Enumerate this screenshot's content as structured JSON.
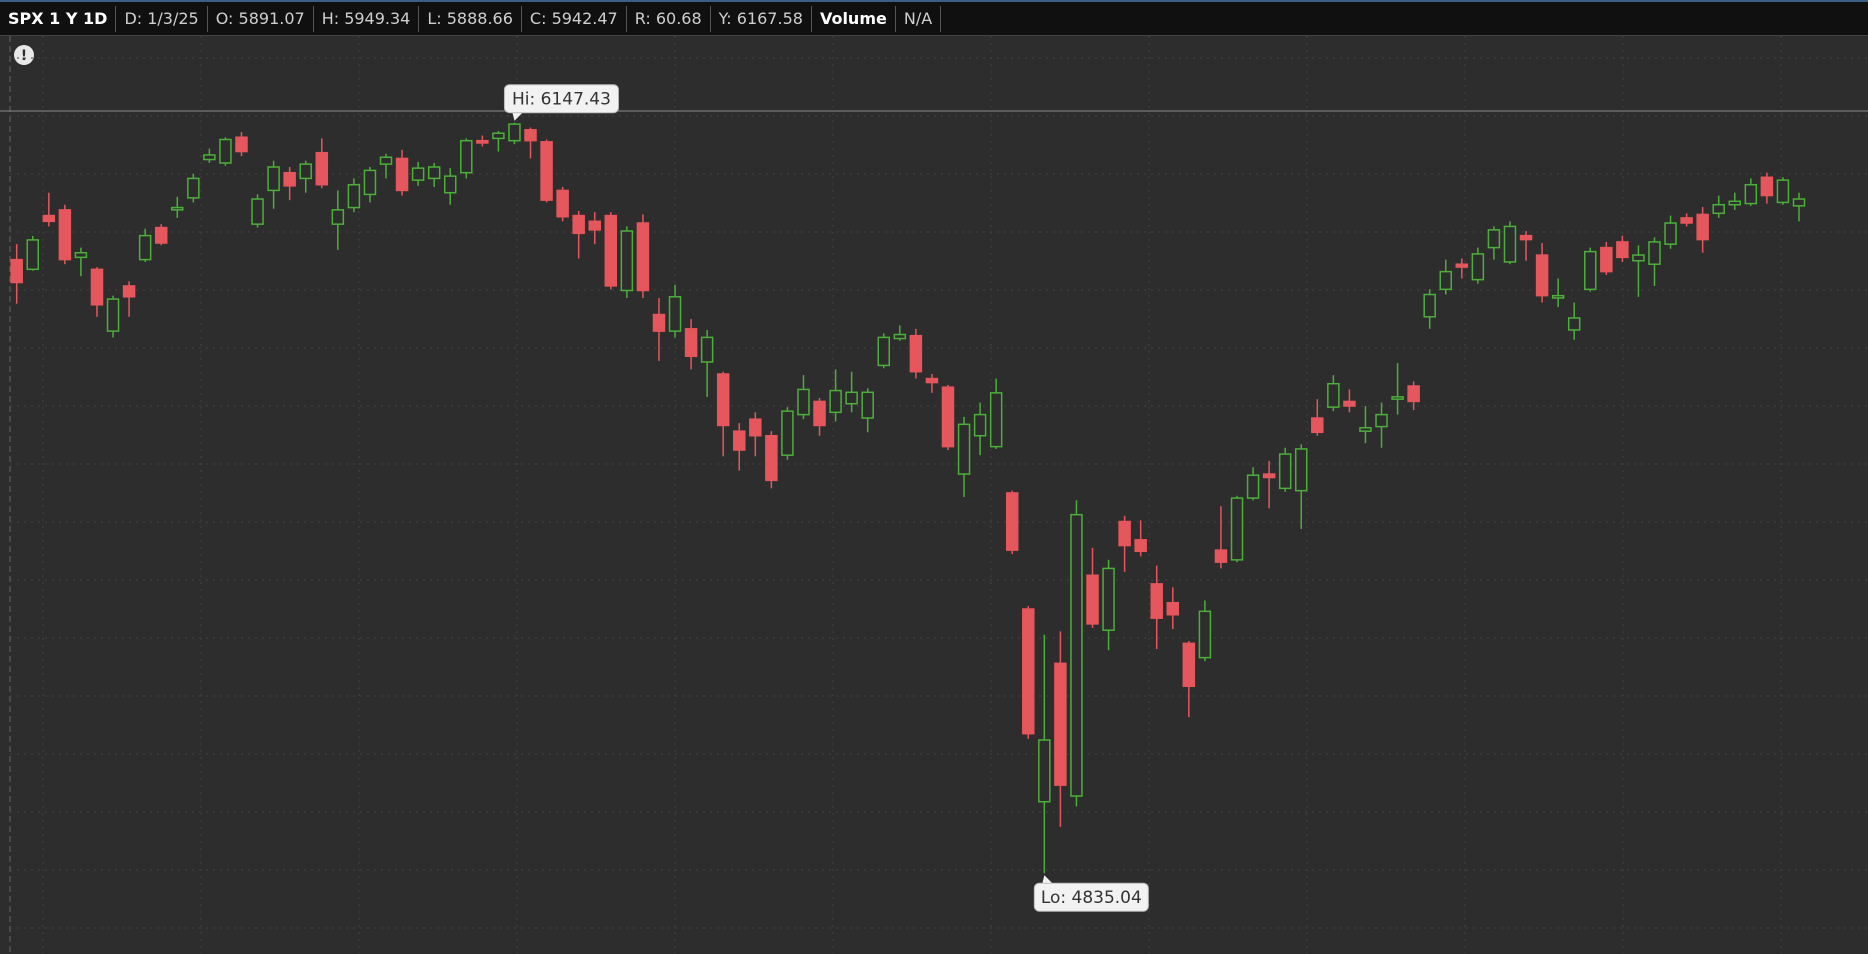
{
  "header": {
    "symbol": "SPX 1 Y 1D",
    "fields": [
      "D: 1/3/25",
      "O: 5891.07",
      "H: 5949.34",
      "L: 5888.66",
      "C: 5942.47",
      "R: 60.68",
      "Y: 6167.58"
    ],
    "volume": "Volume",
    "volume_value": "N/A"
  },
  "chart_data": {
    "type": "candlestick",
    "up_color": "#4caf3a",
    "down_color": "#e5575c",
    "high_callout": "Hi: 6147.43",
    "low_callout": "Lo: 4835.04",
    "open": [
      5908,
      5891.07,
      5985,
      5995,
      5912,
      5891,
      5783,
      5862,
      5908,
      5964,
      5995,
      6016,
      6083,
      6077,
      6122,
      5970,
      6029,
      6060,
      6050,
      6095,
      5970,
      5999,
      6022,
      6075,
      6085,
      6047,
      6050,
      6025,
      6060,
      6116,
      6120,
      6116,
      6135,
      6114,
      6029,
      5985,
      5975,
      5985,
      5854,
      5972,
      5812,
      5783,
      5787,
      5729,
      5708,
      5608,
      5629,
      5600,
      5566,
      5637,
      5660,
      5641,
      5656,
      5631,
      5723,
      5770,
      5775,
      5700,
      5685,
      5533,
      5600,
      5581,
      5500,
      5297,
      4960,
      5202,
      4970,
      5356,
      5260,
      5450,
      5418,
      5341,
      5308,
      5237,
      5212,
      5400,
      5383,
      5491,
      5533,
      5508,
      5504,
      5631,
      5650,
      5660,
      5608,
      5616,
      5664,
      5687,
      5808,
      5856,
      5900,
      5873,
      5929,
      5904,
      5950,
      5916,
      5841,
      5785,
      5856,
      5929,
      5939,
      5906,
      5900,
      5935,
      5981,
      5987,
      5989,
      6004,
      6006,
      6052,
      6008,
      6002
    ],
    "high": [
      5935,
      5949.34,
      6025,
      6004,
      5929,
      5895,
      5845,
      5870,
      5962,
      5970,
      6018,
      6058,
      6102,
      6122,
      6131,
      6022,
      6081,
      6070,
      6081,
      6120,
      6029,
      6050,
      6070,
      6093,
      6100,
      6079,
      6077,
      6068,
      6120,
      6125,
      6133,
      6147.43,
      6139,
      6118,
      6035,
      5993,
      5991,
      5991,
      5966,
      5987,
      5841,
      5864,
      5804,
      5785,
      5712,
      5622,
      5641,
      5608,
      5650,
      5706,
      5666,
      5716,
      5712,
      5683,
      5779,
      5793,
      5787,
      5708,
      5689,
      5633,
      5658,
      5700,
      5504,
      5302,
      5252,
      5258,
      5487,
      5404,
      5383,
      5460,
      5452,
      5373,
      5335,
      5241,
      5312,
      5477,
      5495,
      5545,
      5556,
      5579,
      5585,
      5664,
      5706,
      5681,
      5652,
      5658,
      5727,
      5695,
      5856,
      5908,
      5910,
      5929,
      5966,
      5975,
      5958,
      5937,
      5875,
      5833,
      5929,
      5939,
      5950,
      5933,
      5947,
      5985,
      5989,
      6000,
      6020,
      6025,
      6050,
      6060,
      6052,
      6025
    ],
    "low": [
      5831,
      5888.66,
      5966,
      5900,
      5879,
      5808,
      5772,
      5808,
      5904,
      5933,
      5981,
      6008,
      6077,
      6072,
      6089,
      5964,
      5997,
      6012,
      6025,
      6033,
      5925,
      5991,
      6008,
      6050,
      6020,
      6037,
      6035,
      6004,
      6050,
      6106,
      6097,
      6110,
      6085,
      6008,
      5975,
      5910,
      5935,
      5856,
      5841,
      5841,
      5731,
      5772,
      5716,
      5668,
      5564,
      5539,
      5564,
      5508,
      5558,
      5629,
      5600,
      5625,
      5641,
      5606,
      5718,
      5766,
      5700,
      5675,
      5575,
      5493,
      5566,
      5577,
      5393,
      5070,
      4835.04,
      4916,
      4952,
      5264,
      5225,
      5362,
      5389,
      5227,
      5262,
      5108,
      5206,
      5368,
      5379,
      5487,
      5473,
      5502,
      5437,
      5600,
      5643,
      5641,
      5587,
      5579,
      5637,
      5645,
      5787,
      5847,
      5875,
      5866,
      5908,
      5900,
      5906,
      5833,
      5825,
      5768,
      5852,
      5881,
      5904,
      5843,
      5862,
      5927,
      5966,
      5920,
      5981,
      5995,
      6002,
      6006,
      6004,
      5975
    ],
    "close": [
      5868,
      5942.47,
      5975,
      5908,
      5920,
      5829,
      5839,
      5843,
      5950,
      5937,
      5999,
      6050,
      6091,
      6118,
      6097,
      6014,
      6070,
      6037,
      6075,
      6039,
      5995,
      6039,
      6064,
      6087,
      6029,
      6068,
      6070,
      6054,
      6116,
      6112,
      6129,
      6145,
      6116,
      6012,
      5983,
      5954,
      5960,
      5862,
      5958,
      5854,
      5783,
      5843,
      5739,
      5772,
      5618,
      5575,
      5600,
      5522,
      5643,
      5681,
      5618,
      5679,
      5676,
      5676,
      5772,
      5777,
      5712,
      5693,
      5581,
      5620,
      5637,
      5675,
      5400,
      5079,
      5068,
      4989,
      5462,
      5271,
      5368,
      5408,
      5398,
      5281,
      5287,
      5162,
      5293,
      5379,
      5491,
      5531,
      5527,
      5568,
      5577,
      5606,
      5691,
      5652,
      5614,
      5637,
      5668,
      5660,
      5847,
      5887,
      5895,
      5918,
      5960,
      5966,
      5943,
      5845,
      5845,
      5806,
      5922,
      5887,
      5912,
      5916,
      5939,
      5972,
      5972,
      5943,
      6004,
      6010,
      6039,
      6020,
      6047,
      6014
    ]
  }
}
